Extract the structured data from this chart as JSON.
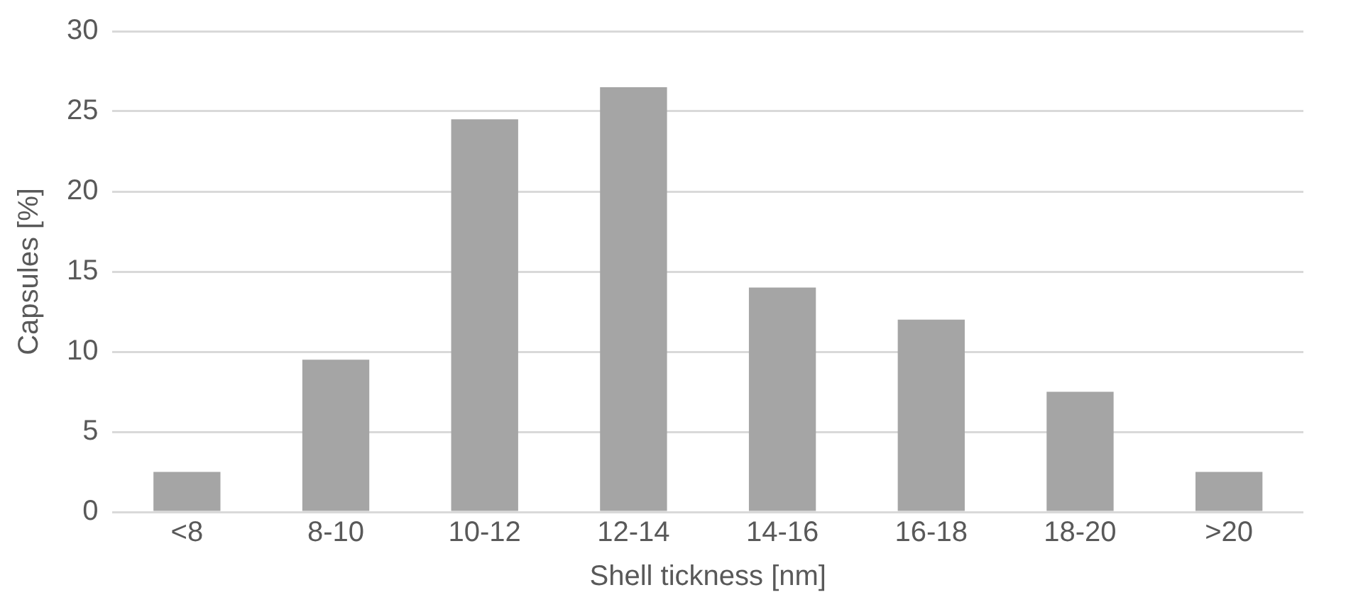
{
  "chart_data": {
    "type": "bar",
    "xlabel": "Shell tickness [nm]",
    "ylabel": "Capsules [%]",
    "categories": [
      "<8",
      "8-10",
      "10-12",
      "12-14",
      "14-16",
      "16-18",
      "18-20",
      ">20"
    ],
    "values": [
      2.5,
      9.5,
      24.5,
      26.5,
      14,
      12,
      7.5,
      2.5
    ],
    "color": "#a5a5a5",
    "ylim": [
      0,
      30
    ],
    "yticks": [
      0,
      5,
      10,
      15,
      20,
      25,
      30
    ],
    "grid": "y",
    "legend": false
  }
}
